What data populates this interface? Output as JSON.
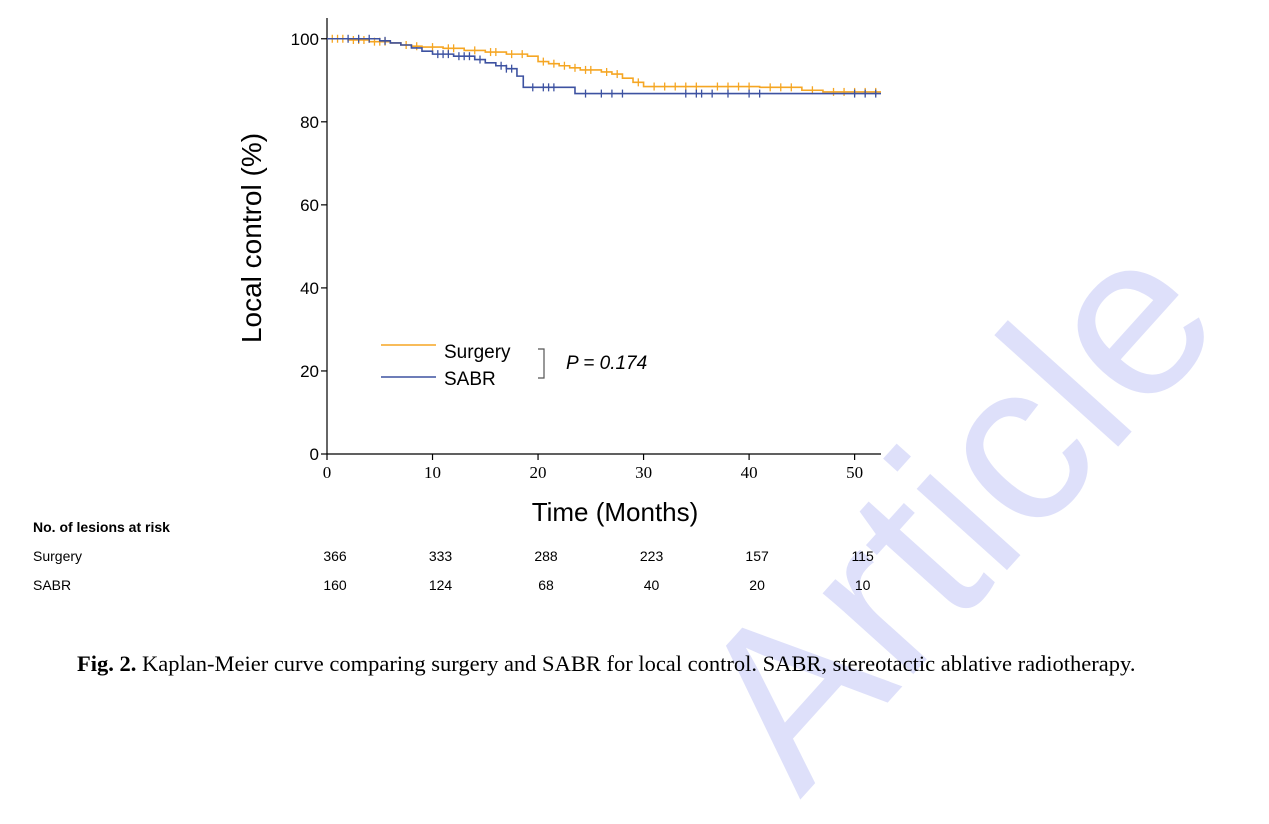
{
  "watermark": {
    "text": "Article",
    "color": "#c9cdf7"
  },
  "chart_data": {
    "type": "line",
    "subtype": "kaplan-meier",
    "xlabel": "Time (Months)",
    "ylabel": "Local control (%)",
    "xlim": [
      0,
      52.5
    ],
    "ylim": [
      0,
      105
    ],
    "xticks": [
      0,
      10,
      20,
      30,
      40,
      50
    ],
    "yticks": [
      0,
      20,
      40,
      60,
      80,
      100
    ],
    "grid": false,
    "legend_position": "lower-left",
    "annotation": "P = 0.174",
    "series": [
      {
        "name": "Surgery",
        "color": "#f5a623",
        "step_x": [
          0,
          2,
          4,
          6,
          7,
          8,
          9,
          11,
          13,
          15,
          17,
          19,
          20,
          21,
          22,
          23,
          24,
          26,
          27,
          28,
          29,
          30,
          36,
          41,
          45,
          47,
          52.5
        ],
        "step_y": [
          100,
          99.7,
          99.3,
          99,
          98.5,
          98.2,
          98,
          97.7,
          97.2,
          96.8,
          96.3,
          95.8,
          94.5,
          94,
          93.5,
          93,
          92.5,
          92,
          91.5,
          90.5,
          89.5,
          88.5,
          88.5,
          88.3,
          87.6,
          87.2,
          87.2
        ],
        "censor_x": [
          0.5,
          1,
          1.5,
          2.5,
          3,
          3.5,
          4.5,
          5,
          5.5,
          7.5,
          8.5,
          10,
          11.5,
          12,
          14,
          15.5,
          16,
          17.5,
          18.5,
          20.5,
          21.5,
          22.5,
          23.5,
          24.5,
          25,
          26.5,
          27.5,
          29.5,
          31,
          32,
          33,
          34,
          35,
          37,
          38,
          39,
          40,
          42,
          43,
          44,
          46,
          48,
          49,
          50,
          51,
          52
        ]
      },
      {
        "name": "SABR",
        "color": "#3d52a1",
        "step_x": [
          0,
          5,
          6,
          7,
          8,
          9,
          10,
          12,
          14,
          15,
          16,
          17,
          18,
          18.6,
          22,
          23.5,
          52.5
        ],
        "step_y": [
          100,
          99.5,
          99,
          98.5,
          97.8,
          97,
          96.3,
          95.8,
          95,
          94.2,
          93.5,
          92.8,
          91,
          88.3,
          88.3,
          86.8,
          86.8
        ],
        "censor_x": [
          2,
          3,
          4,
          5.5,
          10.5,
          11,
          11.5,
          12.5,
          13,
          13.5,
          14.5,
          16.5,
          17,
          17.5,
          19.5,
          20.5,
          21,
          21.5,
          24.5,
          26,
          27,
          28,
          34,
          35,
          35.5,
          36.5,
          38,
          40,
          41,
          50,
          51,
          52
        ]
      }
    ],
    "risk_table": {
      "title": "No. of lesions at risk",
      "times": [
        0,
        10,
        20,
        30,
        40,
        50
      ],
      "rows": [
        {
          "label": "Surgery",
          "values": [
            "366",
            "333",
            "288",
            "223",
            "157",
            "115"
          ]
        },
        {
          "label": "SABR",
          "values": [
            "160",
            "124",
            "68",
            "40",
            "20",
            "10"
          ]
        }
      ]
    }
  },
  "caption": {
    "label": "Fig. 2.",
    "text": " Kaplan-Meier curve comparing surgery and SABR for local control. SABR, stereotactic ablative radiotherapy."
  }
}
